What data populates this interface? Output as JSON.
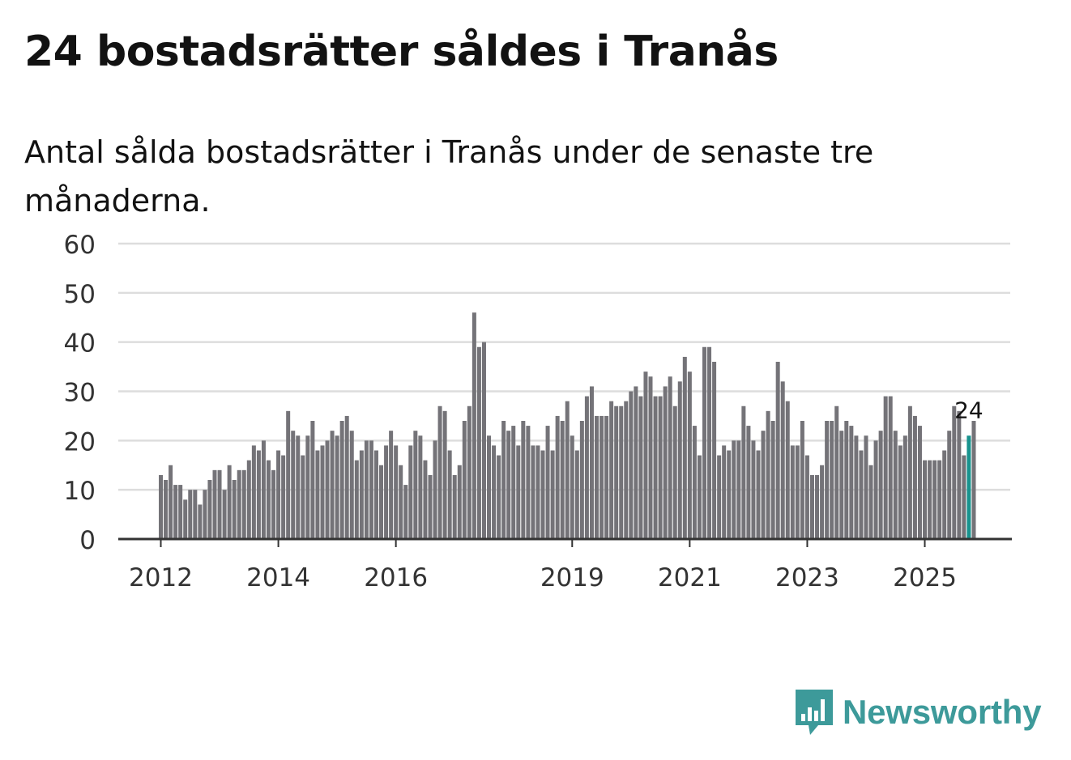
{
  "header": {
    "title": "24 bostadsrätter såldes i Tranås",
    "subtitle": "Antal sålda bostadsrätter i Tranås under de senaste tre månaderna."
  },
  "brand": {
    "name": "Newsworthy",
    "icon": "newsworthy-logo-icon",
    "color": "#3d9a9a"
  },
  "colors": {
    "bar": "#747378",
    "highlight": "#18938e",
    "grid": "#dddddd",
    "axis": "#333333",
    "text": "#121212"
  },
  "chart_data": {
    "type": "bar",
    "title": "24 bostadsrätter såldes i Tranås",
    "subtitle": "Antal sålda bostadsrätter i Tranås under de senaste tre månaderna.",
    "xlabel": "",
    "ylabel": "",
    "ylim": [
      0,
      60
    ],
    "yticks": [
      0,
      10,
      20,
      30,
      40,
      50,
      60
    ],
    "grid": true,
    "x_start": "2012-01",
    "xticks": [
      {
        "label": "2012",
        "index": 0
      },
      {
        "label": "2014",
        "index": 24
      },
      {
        "label": "2016",
        "index": 48
      },
      {
        "label": "2019",
        "index": 84
      },
      {
        "label": "2021",
        "index": 108
      },
      {
        "label": "2023",
        "index": 132
      },
      {
        "label": "2025",
        "index": 156
      }
    ],
    "highlight_index": 165,
    "highlight_label": "24",
    "values": [
      13,
      12,
      15,
      11,
      11,
      8,
      10,
      10,
      7,
      10,
      12,
      14,
      14,
      10,
      15,
      12,
      14,
      14,
      16,
      19,
      18,
      20,
      16,
      14,
      18,
      17,
      26,
      22,
      21,
      17,
      21,
      24,
      18,
      19,
      20,
      22,
      21,
      24,
      25,
      22,
      16,
      18,
      20,
      20,
      18,
      15,
      19,
      22,
      19,
      15,
      11,
      19,
      22,
      21,
      16,
      13,
      20,
      27,
      26,
      18,
      13,
      15,
      24,
      27,
      46,
      39,
      40,
      21,
      19,
      17,
      24,
      22,
      23,
      19,
      24,
      23,
      19,
      19,
      18,
      23,
      18,
      25,
      24,
      28,
      21,
      18,
      24,
      29,
      31,
      25,
      25,
      25,
      28,
      27,
      27,
      28,
      30,
      31,
      29,
      34,
      33,
      29,
      29,
      31,
      33,
      27,
      32,
      37,
      34,
      23,
      17,
      39,
      39,
      36,
      17,
      19,
      18,
      20,
      20,
      27,
      23,
      20,
      18,
      22,
      26,
      24,
      36,
      32,
      28,
      19,
      19,
      24,
      17,
      13,
      13,
      15,
      24,
      24,
      27,
      22,
      24,
      23,
      21,
      18,
      21,
      15,
      20,
      22,
      29,
      29,
      22,
      19,
      21,
      27,
      25,
      23,
      16,
      16,
      16,
      16,
      18,
      22,
      27,
      26,
      17,
      21,
      24
    ]
  }
}
